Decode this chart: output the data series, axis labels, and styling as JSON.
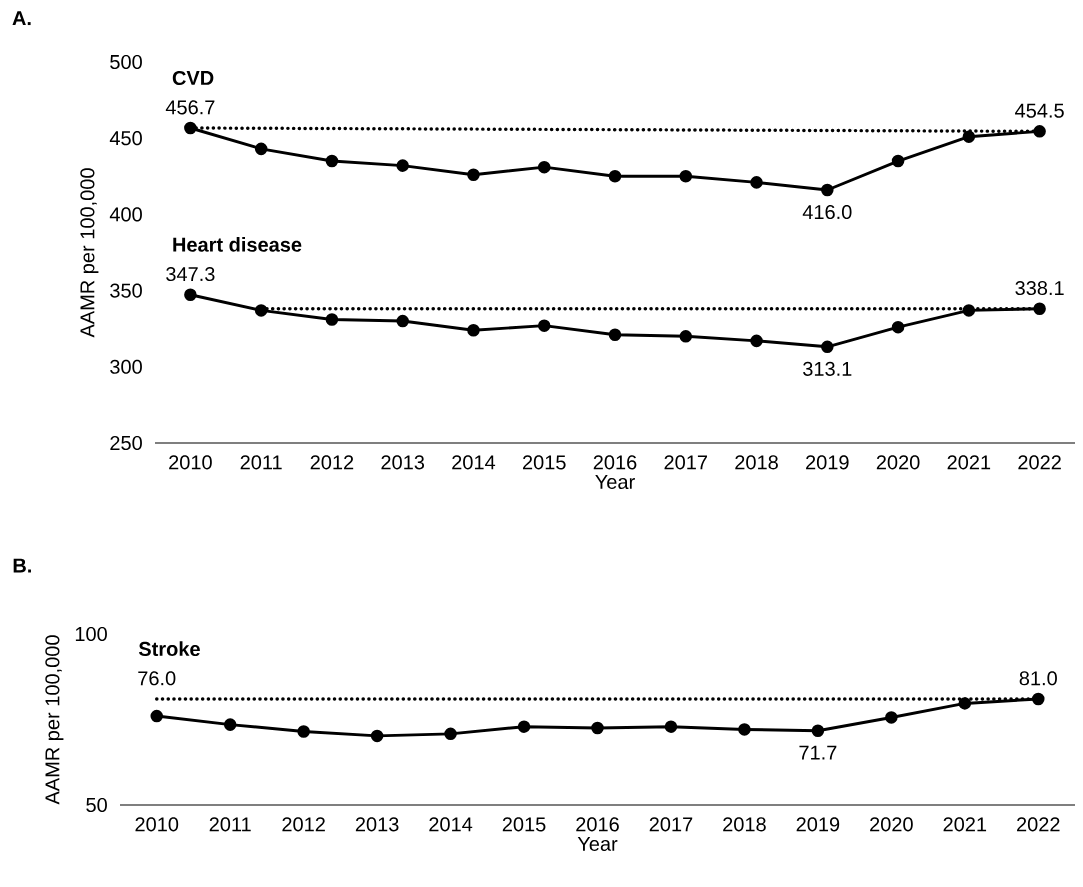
{
  "chart_data": [
    {
      "type": "line",
      "annotations": [
        "A."
      ],
      "xlabel": "Year",
      "ylabel": "AAMR per 100,000",
      "x": [
        2010,
        2011,
        2012,
        2013,
        2014,
        2015,
        2016,
        2017,
        2018,
        2019,
        2020,
        2021,
        2022
      ],
      "xlim": [
        2009.5,
        2022.5
      ],
      "xticks": [
        2010,
        2011,
        2012,
        2013,
        2014,
        2015,
        2016,
        2017,
        2018,
        2019,
        2020,
        2021,
        2022
      ],
      "ylim": [
        250,
        500
      ],
      "yticks": [
        250,
        300,
        350,
        400,
        450,
        500
      ],
      "series": [
        {
          "name": "CVD",
          "color": "#000000",
          "marker": "circle",
          "line_style": "solid",
          "values": [
            456.7,
            443,
            435,
            432,
            426,
            431,
            425,
            425,
            421,
            416.0,
            435,
            451,
            454.5
          ],
          "value_labels": [
            "456.7",
            null,
            null,
            null,
            null,
            null,
            null,
            null,
            null,
            "416.0",
            null,
            null,
            "454.5"
          ]
        },
        {
          "color": "#000000",
          "marker": "none",
          "line_style": "dotted",
          "x": [
            2010,
            2022
          ],
          "values": [
            456.7,
            454.5
          ]
        },
        {
          "name": "Heart disease",
          "color": "#000000",
          "marker": "circle",
          "line_style": "solid",
          "values": [
            347.3,
            337,
            331,
            330,
            324,
            327,
            321,
            320,
            317,
            313.1,
            326,
            337,
            338.1
          ],
          "value_labels": [
            "347.3",
            null,
            null,
            null,
            null,
            null,
            null,
            null,
            null,
            "313.1",
            null,
            null,
            "338.1"
          ]
        },
        {
          "color": "#000000",
          "marker": "none",
          "line_style": "dotted",
          "x": [
            2011,
            2022
          ],
          "values": [
            338.1,
            338.1
          ]
        }
      ]
    },
    {
      "type": "line",
      "annotations": [
        "B."
      ],
      "xlabel": "Year",
      "ylabel": "AAMR per 100,000",
      "x": [
        2010,
        2011,
        2012,
        2013,
        2014,
        2015,
        2016,
        2017,
        2018,
        2019,
        2020,
        2021,
        2022
      ],
      "xlim": [
        2009.5,
        2022.5
      ],
      "xticks": [
        2010,
        2011,
        2012,
        2013,
        2014,
        2015,
        2016,
        2017,
        2018,
        2019,
        2020,
        2021,
        2022
      ],
      "ylim": [
        50,
        100
      ],
      "yticks": [
        50,
        100
      ],
      "series": [
        {
          "name": "Stroke",
          "color": "#000000",
          "marker": "circle",
          "line_style": "solid",
          "values": [
            76.0,
            73.5,
            71.5,
            70.2,
            70.8,
            72.9,
            72.5,
            72.9,
            72.1,
            71.7,
            75.6,
            79.7,
            81.0
          ],
          "value_labels": [
            "76.0",
            null,
            null,
            null,
            null,
            null,
            null,
            null,
            null,
            "71.7",
            null,
            null,
            "81.0"
          ]
        },
        {
          "color": "#000000",
          "marker": "none",
          "line_style": "dotted",
          "x": [
            2010,
            2022
          ],
          "values": [
            81.0,
            81.0
          ]
        }
      ]
    }
  ]
}
